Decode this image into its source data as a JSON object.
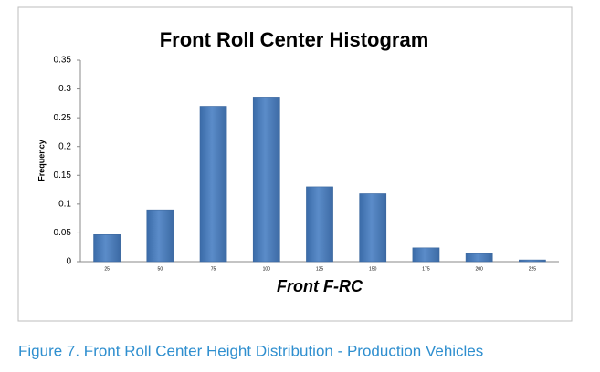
{
  "chart_data": {
    "type": "bar",
    "title": "Front Roll Center Histogram",
    "x_label": "Front F-RC",
    "y_label": "Frequency",
    "categories": [
      "25",
      "50",
      "75",
      "100",
      "125",
      "150",
      "175",
      "200",
      "225"
    ],
    "values": [
      0.047,
      0.09,
      0.27,
      0.286,
      0.13,
      0.118,
      0.024,
      0.014,
      0.003
    ],
    "color": "#4f81bd",
    "ylim": [
      0,
      0.35
    ],
    "yticks": [
      0,
      0.05,
      0.1,
      0.15,
      0.2,
      0.25,
      0.3,
      0.35
    ],
    "grid": false
  },
  "caption": "Figure 7. Front Roll Center Height Distribution - Production Vehicles"
}
